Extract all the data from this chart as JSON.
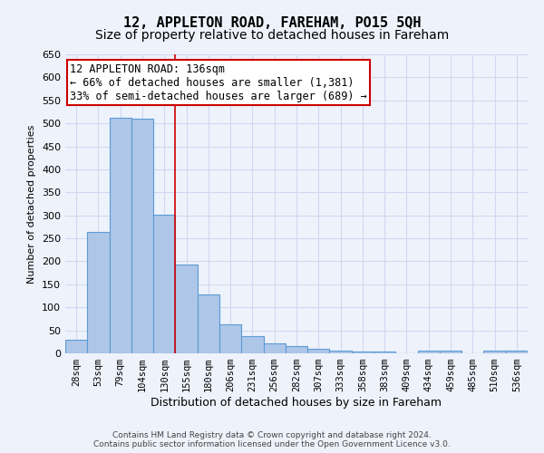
{
  "title": "12, APPLETON ROAD, FAREHAM, PO15 5QH",
  "subtitle": "Size of property relative to detached houses in Fareham",
  "xlabel": "Distribution of detached houses by size in Fareham",
  "ylabel": "Number of detached properties",
  "categories": [
    "28sqm",
    "53sqm",
    "79sqm",
    "104sqm",
    "130sqm",
    "155sqm",
    "180sqm",
    "206sqm",
    "231sqm",
    "256sqm",
    "282sqm",
    "307sqm",
    "333sqm",
    "358sqm",
    "383sqm",
    "409sqm",
    "434sqm",
    "459sqm",
    "485sqm",
    "510sqm",
    "536sqm"
  ],
  "values": [
    30,
    263,
    512,
    511,
    302,
    193,
    128,
    63,
    37,
    21,
    15,
    10,
    5,
    4,
    4,
    0,
    5,
    5,
    0,
    5,
    5
  ],
  "bar_color": "#aec6e8",
  "bar_edge_color": "#5b9bd5",
  "red_line_x": 4,
  "annotation_line1": "12 APPLETON ROAD: 136sqm",
  "annotation_line2": "← 66% of detached houses are smaller (1,381)",
  "annotation_line3": "33% of semi-detached houses are larger (689) →",
  "annotation_box_color": "#ffffff",
  "annotation_box_edge": "#cc0000",
  "ylim": [
    0,
    650
  ],
  "yticks": [
    0,
    50,
    100,
    150,
    200,
    250,
    300,
    350,
    400,
    450,
    500,
    550,
    600,
    650
  ],
  "background_color": "#eef2fb",
  "grid_color": "#d0d8f0",
  "footer_line1": "Contains HM Land Registry data © Crown copyright and database right 2024.",
  "footer_line2": "Contains public sector information licensed under the Open Government Licence v3.0.",
  "title_fontsize": 11,
  "subtitle_fontsize": 10,
  "annotation_fontsize": 8.5,
  "tick_fontsize": 7.5,
  "ylabel_fontsize": 8,
  "xlabel_fontsize": 9
}
